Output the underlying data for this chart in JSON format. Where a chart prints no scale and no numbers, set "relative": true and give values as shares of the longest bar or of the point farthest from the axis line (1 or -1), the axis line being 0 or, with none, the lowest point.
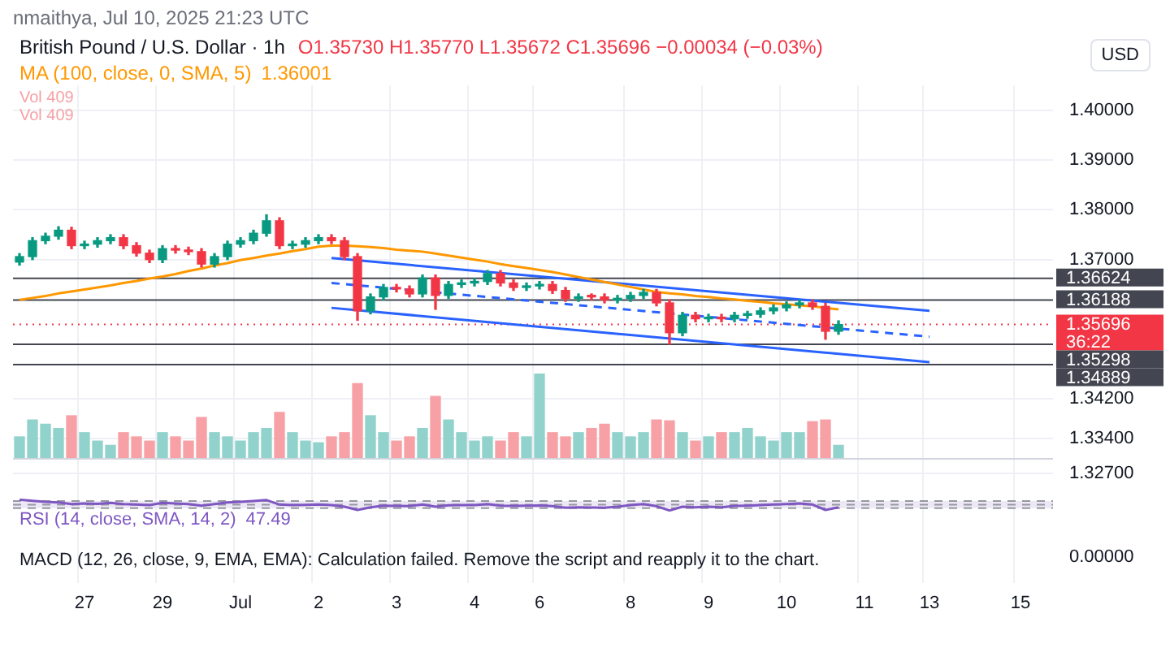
{
  "chart_data": [
    {
      "type": "candlestick",
      "title": "British Pound / U.S. Dollar · 1h",
      "subtitle": "O1.35730 H1.35770 L1.35672 C1.35696 −0.00034 (−0.03%)",
      "ylabel": "USD",
      "annotations": [
        "nmaithya, Jul 10, 2025 21:23 UTC",
        "1.36001"
      ],
      "categories": [
        null,
        null,
        null,
        null,
        null,
        "27",
        null,
        null,
        null,
        null,
        null,
        "29",
        null,
        null,
        null,
        null,
        null,
        "Jul",
        null,
        null,
        null,
        null,
        null,
        "2",
        null,
        null,
        null,
        null,
        null,
        "3",
        null,
        null,
        null,
        null,
        null,
        "4",
        null,
        null,
        null,
        null,
        "6",
        null,
        null,
        null,
        null,
        null,
        null,
        "8",
        null,
        null,
        null,
        null,
        null,
        "9",
        null,
        null,
        null,
        null,
        null,
        "10",
        null,
        null,
        null,
        null,
        null,
        "11",
        null,
        null,
        null,
        null,
        "13",
        null,
        null,
        null,
        null,
        null,
        null,
        "15",
        null,
        null
      ],
      "ohlc": [
        [
          1.3695,
          1.3712,
          1.3689,
          1.3706
        ],
        [
          1.3706,
          1.3744,
          1.37,
          1.3738
        ],
        [
          1.3738,
          1.3753,
          1.3732,
          1.3747
        ],
        [
          1.3747,
          1.3766,
          1.3741,
          1.3759
        ],
        [
          1.3759,
          1.3765,
          1.3722,
          1.3728
        ],
        [
          1.3728,
          1.3737,
          1.3722,
          1.3731
        ],
        [
          1.3731,
          1.3744,
          1.3725,
          1.3738
        ],
        [
          1.3738,
          1.375,
          1.3732,
          1.3744
        ],
        [
          1.3744,
          1.375,
          1.3722,
          1.3728
        ],
        [
          1.3728,
          1.3734,
          1.3707,
          1.3713
        ],
        [
          1.3713,
          1.3719,
          1.3694,
          1.37
        ],
        [
          1.37,
          1.3728,
          1.3694,
          1.3722
        ],
        [
          1.3722,
          1.3728,
          1.3713,
          1.3719
        ],
        [
          1.3719,
          1.3725,
          1.371,
          1.3716
        ],
        [
          1.3716,
          1.3722,
          1.3685,
          1.3691
        ],
        [
          1.3691,
          1.3712,
          1.3685,
          1.3706
        ],
        [
          1.3706,
          1.3737,
          1.37,
          1.3731
        ],
        [
          1.3731,
          1.3744,
          1.3725,
          1.3738
        ],
        [
          1.3738,
          1.3759,
          1.3732,
          1.3753
        ],
        [
          1.3753,
          1.379,
          1.3747,
          1.3778
        ],
        [
          1.3778,
          1.3784,
          1.3722,
          1.3728
        ],
        [
          1.3728,
          1.3737,
          1.3722,
          1.3731
        ],
        [
          1.3731,
          1.3744,
          1.3725,
          1.3738
        ],
        [
          1.3738,
          1.375,
          1.3732,
          1.3744
        ],
        [
          1.3744,
          1.375,
          1.3732,
          1.3738
        ],
        [
          1.3738,
          1.3744,
          1.37,
          1.3706
        ],
        [
          1.3706,
          1.3712,
          1.3578,
          1.3597
        ],
        [
          1.3597,
          1.3631,
          1.3591,
          1.3625
        ],
        [
          1.3625,
          1.365,
          1.3619,
          1.3644
        ],
        [
          1.3644,
          1.365,
          1.3635,
          1.3641
        ],
        [
          1.3641,
          1.3647,
          1.3625,
          1.3631
        ],
        [
          1.3631,
          1.3669,
          1.3625,
          1.3663
        ],
        [
          1.3663,
          1.3669,
          1.36,
          1.3628
        ],
        [
          1.3628,
          1.3656,
          1.3622,
          1.365
        ],
        [
          1.365,
          1.3659,
          1.3644,
          1.3653
        ],
        [
          1.3653,
          1.3662,
          1.3647,
          1.3656
        ],
        [
          1.3656,
          1.3678,
          1.365,
          1.3672
        ],
        [
          1.3672,
          1.3678,
          1.3647,
          1.3653
        ],
        [
          1.3653,
          1.3659,
          1.3638,
          1.3644
        ],
        [
          1.3644,
          1.3653,
          1.3638,
          1.3647
        ],
        [
          1.3647,
          1.3656,
          1.3641,
          1.365
        ],
        [
          1.365,
          1.3656,
          1.3632,
          1.3638
        ],
        [
          1.3638,
          1.3644,
          1.3616,
          1.3622
        ],
        [
          1.3622,
          1.3631,
          1.3616,
          1.3625
        ],
        [
          1.3625,
          1.3631,
          1.3619,
          1.3625
        ],
        [
          1.3625,
          1.3631,
          1.3613,
          1.3619
        ],
        [
          1.3619,
          1.3628,
          1.3613,
          1.3622
        ],
        [
          1.3622,
          1.3634,
          1.3616,
          1.3628
        ],
        [
          1.3628,
          1.364,
          1.3622,
          1.3634
        ],
        [
          1.3634,
          1.364,
          1.3607,
          1.3613
        ],
        [
          1.3613,
          1.3619,
          1.353,
          1.3553
        ],
        [
          1.3553,
          1.3594,
          1.3547,
          1.3588
        ],
        [
          1.3588,
          1.3594,
          1.3575,
          1.3581
        ],
        [
          1.3581,
          1.359,
          1.3575,
          1.3584
        ],
        [
          1.3584,
          1.359,
          1.3575,
          1.3581
        ],
        [
          1.3581,
          1.3594,
          1.3575,
          1.3588
        ],
        [
          1.3588,
          1.3596,
          1.3582,
          1.359
        ],
        [
          1.359,
          1.3603,
          1.3584,
          1.3597
        ],
        [
          1.3597,
          1.3609,
          1.3591,
          1.3603
        ],
        [
          1.3603,
          1.3615,
          1.3597,
          1.3609
        ],
        [
          1.3609,
          1.3619,
          1.3603,
          1.3613
        ],
        [
          1.3613,
          1.3619,
          1.36,
          1.3606
        ],
        [
          1.3606,
          1.3612,
          1.354,
          1.3556
        ],
        [
          1.3556,
          1.3577,
          1.355,
          1.35696
        ],
        null,
        null,
        null,
        null,
        null,
        null,
        null,
        null,
        null,
        null,
        null,
        null,
        null,
        null,
        null,
        null
      ],
      "colors": [
        "#089981",
        "#089981",
        "#089981",
        "#089981",
        "#f23645",
        "#089981",
        "#089981",
        "#089981",
        "#f23645",
        "#f23645",
        "#f23645",
        "#089981",
        "#f23645",
        "#f23645",
        "#f23645",
        "#089981",
        "#089981",
        "#089981",
        "#089981",
        "#089981",
        "#f23645",
        "#089981",
        "#089981",
        "#089981",
        "#f23645",
        "#f23645",
        "#f23645",
        "#089981",
        "#089981",
        "#f23645",
        "#f23645",
        "#089981",
        "#f23645",
        "#089981",
        "#089981",
        "#089981",
        "#089981",
        "#f23645",
        "#f23645",
        "#089981",
        "#089981",
        "#f23645",
        "#f23645",
        "#089981",
        "#f23645",
        "#f23645",
        "#089981",
        "#089981",
        "#089981",
        "#f23645",
        "#f23645",
        "#089981",
        "#f23645",
        "#089981",
        "#f23645",
        "#089981",
        "#089981",
        "#089981",
        "#089981",
        "#089981",
        "#089981",
        "#f23645",
        "#f23645",
        "#089981",
        null,
        null,
        null,
        null,
        null,
        null,
        null,
        null,
        null,
        null,
        null,
        null,
        null,
        null,
        null,
        null
      ],
      "series": [
        {
          "type": "line",
          "name": "MA (100, close, 0, SMA, 5)",
          "color": "#ff9800",
          "values": [
            1.3619,
            1.3623,
            1.3627,
            1.3632,
            1.3636,
            1.364,
            1.3644,
            1.3648,
            1.3653,
            1.3657,
            1.3662,
            1.3666,
            1.3671,
            1.3677,
            1.3682,
            1.3688,
            1.3693,
            1.3699,
            1.3703,
            1.3708,
            1.3712,
            1.3717,
            1.3721,
            1.3726,
            1.3728,
            1.3728,
            1.3727,
            1.3725,
            1.3723,
            1.372,
            1.3718,
            1.3716,
            1.3712,
            1.3708,
            1.3704,
            1.37,
            1.3696,
            1.3691,
            1.3687,
            1.3683,
            1.3679,
            1.3675,
            1.367,
            1.3665,
            1.366,
            1.3655,
            1.365,
            1.3645,
            1.364,
            1.3635,
            1.3632,
            1.363,
            1.3627,
            1.3625,
            1.3622,
            1.362,
            1.3617,
            1.3615,
            1.3612,
            1.361,
            1.3608,
            1.3606,
            1.3603,
            1.36,
            null,
            null,
            null,
            null,
            null,
            null,
            null,
            null,
            null,
            null,
            null,
            null,
            null,
            null,
            null,
            null
          ]
        },
        {
          "type": "line",
          "color": "#2962ff",
          "values": [
            null,
            null,
            null,
            null,
            null,
            null,
            null,
            null,
            null,
            null,
            null,
            null,
            null,
            null,
            null,
            null,
            null,
            null,
            null,
            null,
            null,
            null,
            null,
            null,
            1.3703,
            null,
            null,
            null,
            null,
            null,
            null,
            null,
            null,
            null,
            null,
            null,
            null,
            null,
            null,
            null,
            null,
            null,
            null,
            null,
            null,
            null,
            null,
            null,
            null,
            null,
            null,
            null,
            null,
            null,
            null,
            null,
            null,
            null,
            null,
            null,
            null,
            null,
            null,
            null,
            null,
            null,
            null,
            null,
            null,
            null,
            1.3597,
            null,
            null,
            null,
            null,
            null,
            null,
            null,
            null,
            null
          ]
        },
        {
          "type": "line",
          "color": "#2962ff",
          "line_style": "dashed",
          "values": [
            null,
            null,
            null,
            null,
            null,
            null,
            null,
            null,
            null,
            null,
            null,
            null,
            null,
            null,
            null,
            null,
            null,
            null,
            null,
            null,
            null,
            null,
            null,
            null,
            1.3653,
            null,
            null,
            null,
            null,
            null,
            null,
            null,
            null,
            null,
            null,
            null,
            null,
            null,
            null,
            null,
            null,
            null,
            null,
            null,
            null,
            null,
            null,
            null,
            null,
            null,
            null,
            null,
            null,
            null,
            null,
            null,
            null,
            null,
            null,
            null,
            null,
            null,
            null,
            null,
            null,
            null,
            null,
            null,
            null,
            null,
            1.3545,
            null,
            null,
            null,
            null,
            null,
            null,
            null,
            null,
            null
          ]
        },
        {
          "type": "line",
          "color": "#2962ff",
          "values": [
            null,
            null,
            null,
            null,
            null,
            null,
            null,
            null,
            null,
            null,
            null,
            null,
            null,
            null,
            null,
            null,
            null,
            null,
            null,
            null,
            null,
            null,
            null,
            null,
            1.3603,
            null,
            null,
            null,
            null,
            null,
            null,
            null,
            null,
            null,
            null,
            null,
            null,
            null,
            null,
            null,
            null,
            null,
            null,
            null,
            null,
            null,
            null,
            null,
            null,
            null,
            null,
            null,
            null,
            null,
            null,
            null,
            null,
            null,
            null,
            null,
            null,
            null,
            null,
            null,
            null,
            null,
            null,
            null,
            null,
            null,
            1.3494,
            null,
            null,
            null,
            null,
            null,
            null,
            null,
            null,
            null
          ]
        }
      ],
      "ylim": [
        1.305,
        1.405
      ],
      "yticks": [
        {
          "value": 1.4,
          "label": "1.40000"
        },
        {
          "value": 1.39,
          "label": "1.39000"
        },
        {
          "value": 1.38,
          "label": "1.38000"
        },
        {
          "value": 1.37,
          "label": "1.37000"
        },
        {
          "value": 1.342,
          "label": "1.34200"
        },
        {
          "value": 1.334,
          "label": "1.33400"
        },
        {
          "value": 1.327,
          "label": "1.32700"
        }
      ],
      "ref_lines": [
        {
          "axis": "y",
          "value": 1.36624,
          "label": "1.36624",
          "color": "#434651"
        },
        {
          "axis": "y",
          "value": 1.36188,
          "label": "1.36188",
          "color": "#434651"
        },
        {
          "axis": "y",
          "value": 1.35696,
          "label": "1.35696\n36:22",
          "color": "#f23645",
          "line_style": "dotted"
        },
        {
          "axis": "y",
          "value": 1.35298,
          "label": "1.35298",
          "color": "#434651"
        },
        {
          "axis": "y",
          "value": 1.34889,
          "label": "1.34889",
          "color": "#434651"
        }
      ],
      "grid": true,
      "legend": "top left"
    },
    {
      "type": "bar",
      "relative": true,
      "annotations": [
        "Vol 409",
        "Vol 409"
      ],
      "categories": [
        null,
        null,
        null,
        null,
        null,
        null,
        null,
        null,
        null,
        null,
        null,
        null,
        null,
        null,
        null,
        null,
        null,
        null,
        null,
        null,
        null,
        null,
        null,
        null,
        null,
        null,
        null,
        null,
        null,
        null,
        null,
        null,
        null,
        null,
        null,
        null,
        null,
        null,
        null,
        null,
        null,
        null,
        null,
        null,
        null,
        null,
        null,
        null,
        null,
        null,
        null,
        null,
        null,
        null,
        null,
        null,
        null,
        null,
        null,
        null,
        null,
        null,
        null,
        null,
        null,
        null,
        null,
        null,
        null,
        null,
        null,
        null,
        null,
        null,
        null,
        null,
        null,
        null,
        null,
        null
      ],
      "values": [
        0.25,
        0.45,
        0.4,
        0.35,
        0.5,
        0.3,
        0.2,
        0.15,
        0.3,
        0.25,
        0.2,
        0.3,
        0.25,
        0.2,
        0.48,
        0.3,
        0.25,
        0.2,
        0.3,
        0.35,
        0.54,
        0.3,
        0.2,
        0.18,
        0.25,
        0.3,
        0.88,
        0.5,
        0.3,
        0.2,
        0.25,
        0.35,
        0.73,
        0.45,
        0.3,
        0.2,
        0.25,
        0.2,
        0.3,
        0.25,
        1,
        0.3,
        0.25,
        0.3,
        0.35,
        0.4,
        0.3,
        0.25,
        0.3,
        0.45,
        0.44,
        0.3,
        0.2,
        0.25,
        0.3,
        0.3,
        0.35,
        0.25,
        0.2,
        0.3,
        0.3,
        0.43,
        0.45,
        0.15,
        null,
        null,
        null,
        null,
        null,
        null,
        null,
        null,
        null,
        null,
        null,
        null,
        null,
        null,
        null,
        null
      ],
      "colors": [
        "#92d2cc",
        "#92d2cc",
        "#92d2cc",
        "#92d2cc",
        "#f7a1a6",
        "#92d2cc",
        "#92d2cc",
        "#92d2cc",
        "#f7a1a6",
        "#f7a1a6",
        "#f7a1a6",
        "#92d2cc",
        "#f7a1a6",
        "#f7a1a6",
        "#f7a1a6",
        "#92d2cc",
        "#92d2cc",
        "#92d2cc",
        "#92d2cc",
        "#92d2cc",
        "#f7a1a6",
        "#92d2cc",
        "#92d2cc",
        "#92d2cc",
        "#f7a1a6",
        "#f7a1a6",
        "#f7a1a6",
        "#92d2cc",
        "#92d2cc",
        "#f7a1a6",
        "#f7a1a6",
        "#92d2cc",
        "#f7a1a6",
        "#92d2cc",
        "#92d2cc",
        "#92d2cc",
        "#92d2cc",
        "#f7a1a6",
        "#f7a1a6",
        "#92d2cc",
        "#92d2cc",
        "#f7a1a6",
        "#f7a1a6",
        "#92d2cc",
        "#f7a1a6",
        "#f7a1a6",
        "#92d2cc",
        "#92d2cc",
        "#92d2cc",
        "#f7a1a6",
        "#f7a1a6",
        "#92d2cc",
        "#f7a1a6",
        "#92d2cc",
        "#f7a1a6",
        "#92d2cc",
        "#92d2cc",
        "#92d2cc",
        "#92d2cc",
        "#92d2cc",
        "#92d2cc",
        "#f7a1a6",
        "#f7a1a6",
        "#92d2cc",
        null,
        null,
        null,
        null,
        null,
        null,
        null,
        null,
        null,
        null,
        null,
        null,
        null,
        null,
        null,
        null
      ]
    },
    {
      "type": "line",
      "relative": true,
      "legend": "left",
      "annotations": [
        "47.49"
      ],
      "categories": [
        null,
        null,
        null,
        null,
        null,
        null,
        null,
        null,
        null,
        null,
        null,
        null,
        null,
        null,
        null,
        null,
        null,
        null,
        null,
        null,
        null,
        null,
        null,
        null,
        null,
        null,
        null,
        null,
        null,
        null,
        null,
        null,
        null,
        null,
        null,
        null,
        null,
        null,
        null,
        null,
        null,
        null,
        null,
        null,
        null,
        null,
        null,
        null,
        null,
        null,
        null,
        null,
        null,
        null,
        null,
        null,
        null,
        null,
        null,
        null,
        null,
        null,
        null,
        null,
        null,
        null,
        null,
        null,
        null,
        null,
        null,
        null,
        null,
        null,
        null,
        null,
        null,
        null,
        null,
        null
      ],
      "series": [
        {
          "name": "RSI (14, close, SMA, 14, 2)",
          "color": "#7e57c2",
          "values": [
            1,
            0.9,
            0.8,
            0.75,
            0.6,
            0.65,
            0.62,
            0.7,
            0.6,
            0.55,
            0.5,
            0.7,
            0.65,
            0.6,
            0.45,
            0.6,
            0.75,
            0.8,
            0.88,
            0.96,
            0.55,
            0.5,
            0.52,
            0.55,
            0.5,
            0.35,
            0.05,
            0.3,
            0.45,
            0.42,
            0.4,
            0.55,
            0.35,
            0.48,
            0.5,
            0.5,
            0.6,
            0.45,
            0.42,
            0.45,
            0.47,
            0.4,
            0.25,
            0.3,
            0.28,
            0.25,
            0.35,
            0.5,
            0.6,
            0.4,
            0,
            0.35,
            0.3,
            0.35,
            0.3,
            0.42,
            0.45,
            0.5,
            0.55,
            0.6,
            0.65,
            0.55,
            0.05,
            0.3,
            null,
            null,
            null,
            null,
            null,
            null,
            null,
            null,
            null,
            null,
            null,
            null,
            null,
            null,
            null,
            null
          ]
        }
      ],
      "bands": [
        {
          "axis": "y",
          "from": 0.21,
          "to": 0.875,
          "color": "#ede7f6"
        }
      ],
      "ref_lines": [
        {
          "axis": "y",
          "value": 0.875,
          "color": "#9598a1",
          "line_style": "dashed"
        },
        {
          "axis": "y",
          "value": 0.54,
          "color": "#9598a1",
          "line_style": "dashed"
        },
        {
          "axis": "y",
          "value": 0.21,
          "color": "#9598a1",
          "line_style": "dashed"
        }
      ]
    },
    {
      "type": "other",
      "annotations": [
        "MACD (12, 26, close, 9, EMA, EMA): Calculation failed. Remove the script and reapply it to the chart.",
        "0.00000"
      ]
    }
  ]
}
